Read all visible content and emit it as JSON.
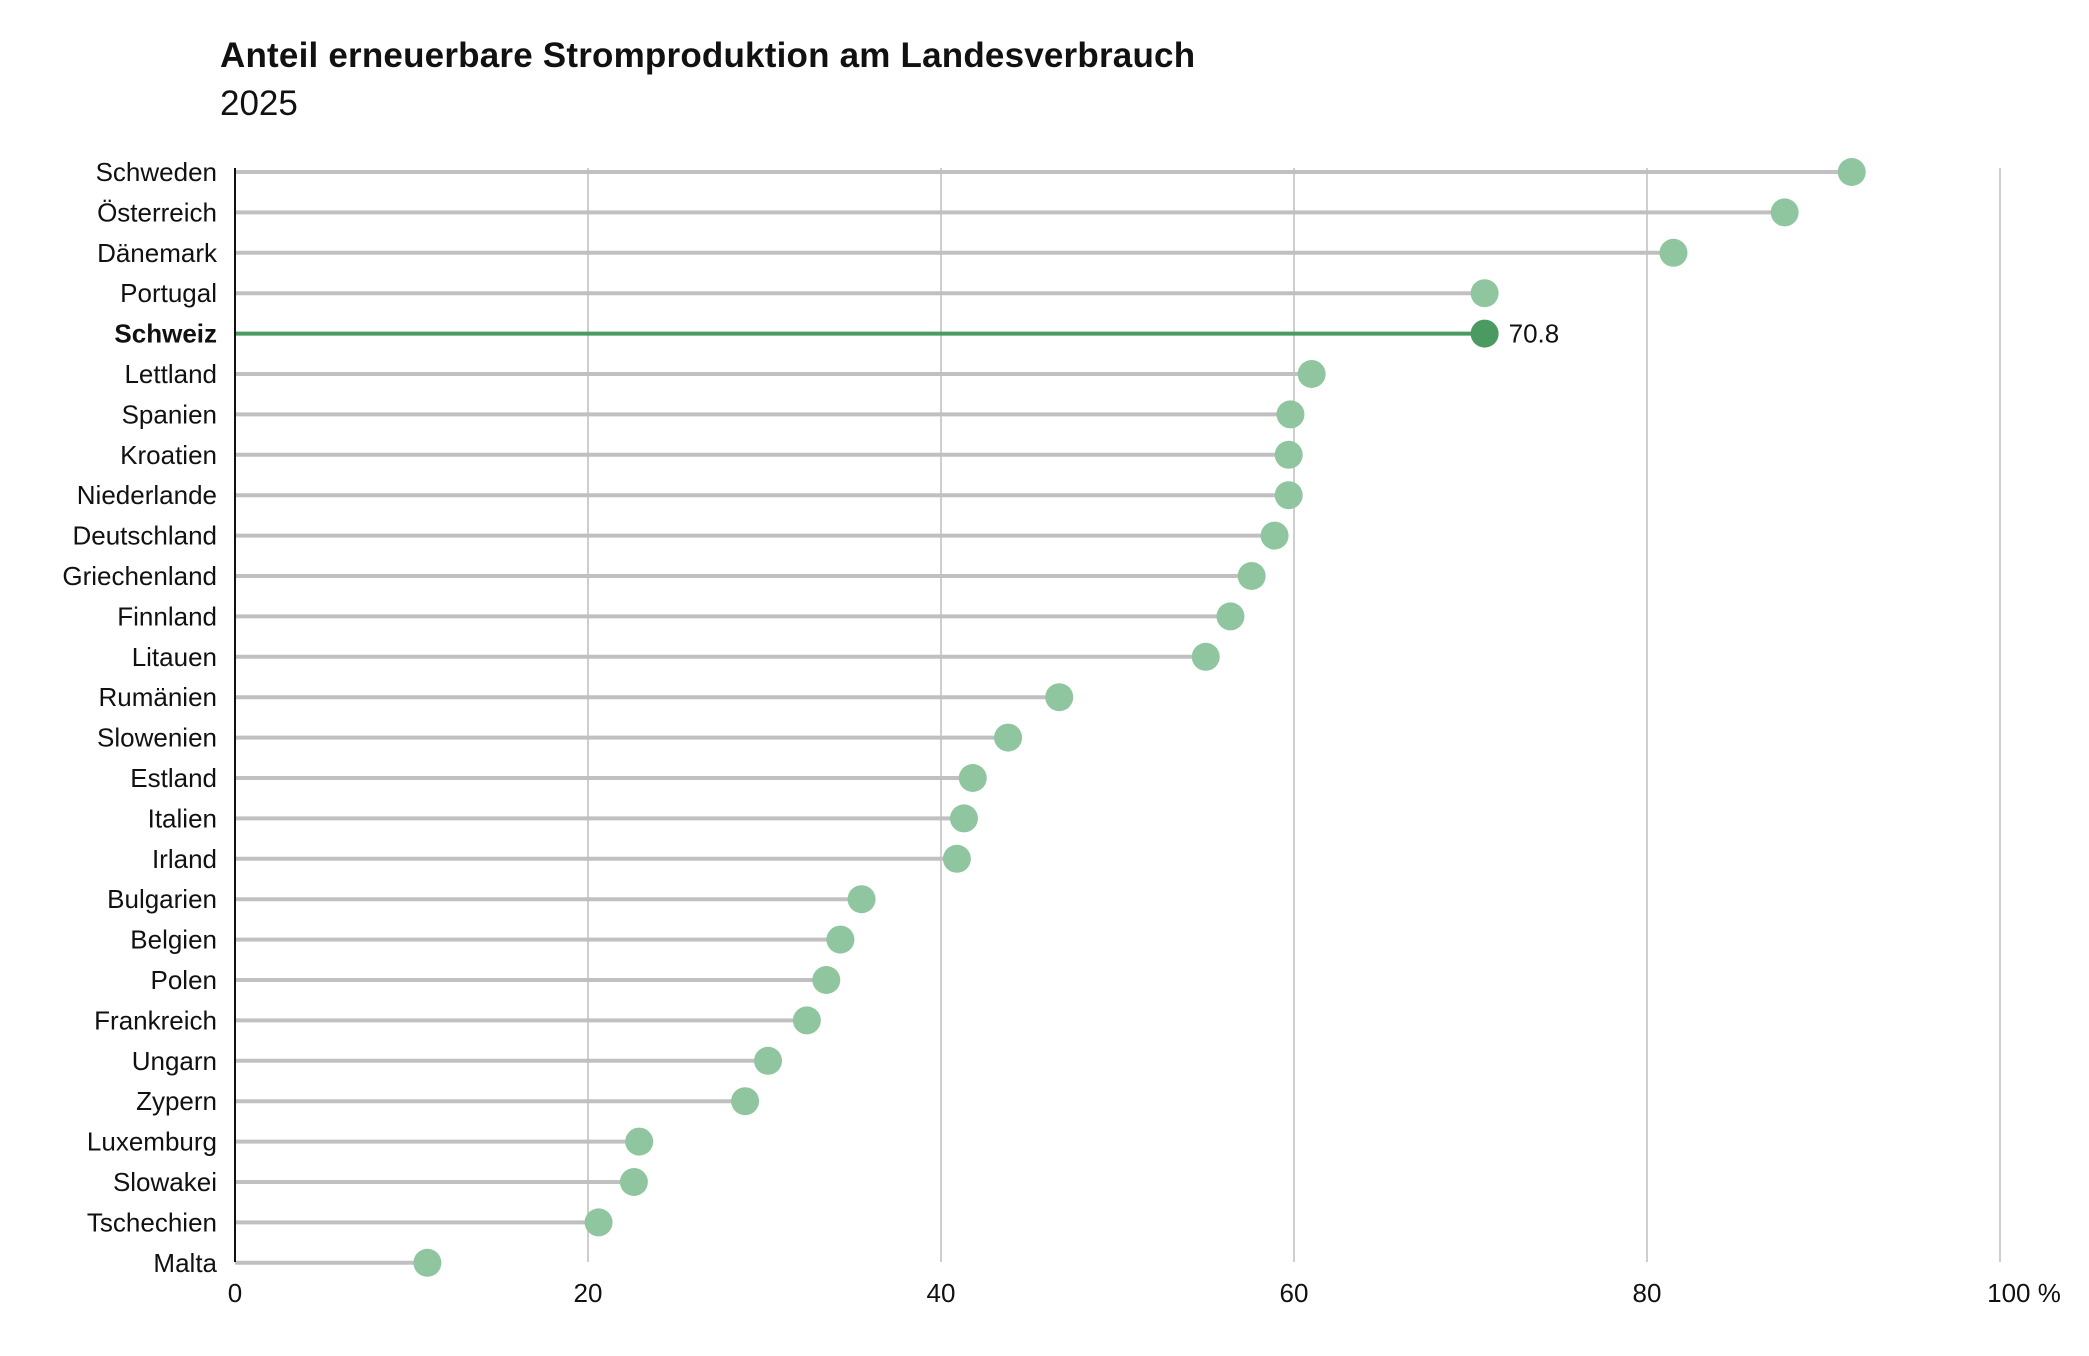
{
  "chart_data": {
    "type": "lollipop",
    "title": "Anteil erneuerbare Stromproduktion am Landesverbrauch",
    "subtitle": "2025",
    "unit": "%",
    "xlim": [
      0,
      100
    ],
    "ticks": [
      0,
      20,
      40,
      60,
      80,
      100
    ],
    "grid": true,
    "highlight": "Schweiz",
    "highlight_label": "70.8",
    "colors": {
      "point": "#8fc6a0",
      "highlight": "#4a9a62",
      "stem": "#c2bfc3",
      "grid": "#b3b3b3",
      "axis": "#111111"
    },
    "categories": [
      "Schweden",
      "Österreich",
      "Dänemark",
      "Portugal",
      "Schweiz",
      "Lettland",
      "Spanien",
      "Kroatien",
      "Niederlande",
      "Deutschland",
      "Griechenland",
      "Finnland",
      "Litauen",
      "Rumänien",
      "Slowenien",
      "Estland",
      "Italien",
      "Irland",
      "Bulgarien",
      "Belgien",
      "Polen",
      "Frankreich",
      "Ungarn",
      "Zypern",
      "Luxemburg",
      "Slowakei",
      "Tschechien",
      "Malta"
    ],
    "values": [
      91.6,
      87.8,
      81.5,
      70.8,
      70.8,
      61.0,
      59.8,
      59.7,
      59.7,
      58.9,
      57.6,
      56.4,
      55.0,
      46.7,
      43.8,
      41.8,
      41.3,
      40.9,
      35.5,
      34.3,
      33.5,
      32.4,
      30.2,
      28.9,
      22.9,
      22.6,
      20.6,
      10.9
    ]
  }
}
